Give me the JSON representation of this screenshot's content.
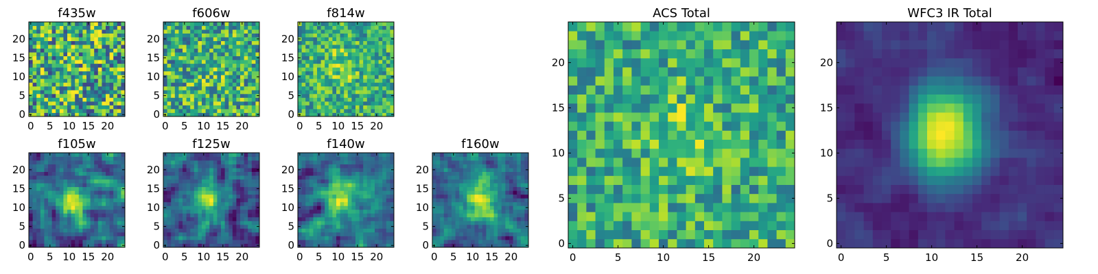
{
  "chart_data": [
    {
      "type": "heatmap",
      "title": "f435w",
      "x_ticks": [
        0,
        5,
        10,
        15,
        20
      ],
      "y_ticks": [
        0,
        5,
        10,
        15,
        20
      ],
      "xlim": [
        -0.5,
        24.5
      ],
      "ylim": [
        -0.5,
        24.5
      ],
      "grid": 25,
      "source_center": [
        12,
        12
      ],
      "peak_strength": 0.05,
      "noise_level": 0.95,
      "colormap": "viridis"
    },
    {
      "type": "heatmap",
      "title": "f606w",
      "x_ticks": [
        0,
        5,
        10,
        15,
        20
      ],
      "y_ticks": [
        0,
        5,
        10,
        15,
        20
      ],
      "xlim": [
        -0.5,
        24.5
      ],
      "ylim": [
        -0.5,
        24.5
      ],
      "grid": 25,
      "source_center": [
        12,
        12
      ],
      "peak_strength": 0.25,
      "noise_level": 0.75,
      "colormap": "viridis"
    },
    {
      "type": "heatmap",
      "title": "f814w",
      "x_ticks": [
        0,
        5,
        10,
        15,
        20
      ],
      "y_ticks": [
        0,
        5,
        10,
        15,
        20
      ],
      "xlim": [
        -0.5,
        24.5
      ],
      "ylim": [
        -0.5,
        24.5
      ],
      "grid": 25,
      "source_center": [
        11,
        13
      ],
      "peak_strength": 0.45,
      "noise_level": 0.6,
      "colormap": "viridis"
    },
    {
      "type": "heatmap",
      "title": "f105w",
      "x_ticks": [
        0,
        5,
        10,
        15,
        20
      ],
      "y_ticks": [
        0,
        5,
        10,
        15,
        20
      ],
      "xlim": [
        -0.5,
        24.5
      ],
      "ylim": [
        -0.5,
        24.5
      ],
      "grid": 25,
      "source_center": [
        11,
        12
      ],
      "peak_strength": 0.55,
      "noise_level": 0.55,
      "colormap": "viridis"
    },
    {
      "type": "heatmap",
      "title": "f125w",
      "x_ticks": [
        0,
        5,
        10,
        15,
        20
      ],
      "y_ticks": [
        0,
        5,
        10,
        15,
        20
      ],
      "xlim": [
        -0.5,
        24.5
      ],
      "ylim": [
        -0.5,
        24.5
      ],
      "grid": 25,
      "source_center": [
        11,
        12
      ],
      "peak_strength": 0.5,
      "noise_level": 0.55,
      "colormap": "viridis"
    },
    {
      "type": "heatmap",
      "title": "f140w",
      "x_ticks": [
        0,
        5,
        10,
        15,
        20
      ],
      "y_ticks": [
        0,
        5,
        10,
        15,
        20
      ],
      "xlim": [
        -0.5,
        24.5
      ],
      "ylim": [
        -0.5,
        24.5
      ],
      "grid": 25,
      "source_center": [
        11,
        13
      ],
      "peak_strength": 0.55,
      "noise_level": 0.5,
      "colormap": "viridis"
    },
    {
      "type": "heatmap",
      "title": "f160w",
      "x_ticks": [
        0,
        5,
        10,
        15,
        20
      ],
      "y_ticks": [
        0,
        5,
        10,
        15,
        20
      ],
      "xlim": [
        -0.5,
        24.5
      ],
      "ylim": [
        -0.5,
        24.5
      ],
      "grid": 25,
      "source_center": [
        12,
        12
      ],
      "peak_strength": 0.55,
      "noise_level": 0.5,
      "colormap": "viridis"
    },
    {
      "type": "heatmap",
      "title": "ACS Total",
      "x_ticks": [
        0,
        5,
        10,
        15,
        20
      ],
      "y_ticks": [
        0,
        5,
        10,
        15,
        20
      ],
      "xlim": [
        -0.5,
        24.5
      ],
      "ylim": [
        -0.5,
        24.5
      ],
      "grid": 25,
      "source_center": [
        11.5,
        12
      ],
      "peak_strength": 0.35,
      "noise_level": 0.6,
      "colormap": "viridis"
    },
    {
      "type": "heatmap",
      "title": "WFC3 IR Total",
      "x_ticks": [
        0,
        5,
        10,
        15,
        20
      ],
      "y_ticks": [
        0,
        5,
        10,
        15,
        20
      ],
      "xlim": [
        -0.5,
        24.5
      ],
      "ylim": [
        -0.5,
        24.5
      ],
      "grid": 25,
      "source_center": [
        11.5,
        12.5
      ],
      "peak_strength": 0.85,
      "noise_level": 0.2,
      "colormap": "viridis"
    }
  ]
}
